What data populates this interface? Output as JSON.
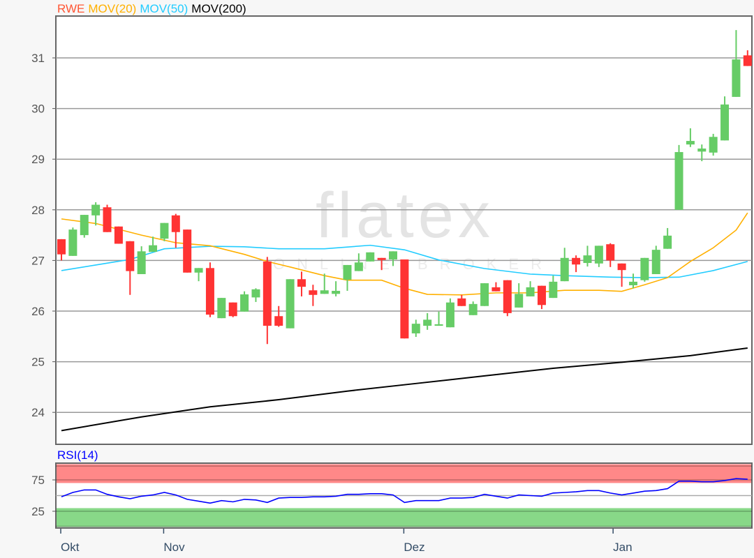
{
  "legend": {
    "symbol": "RWE",
    "ma20": "MOV(20)",
    "ma50": "MOV(50)",
    "ma200": "MOV(200)"
  },
  "watermark": {
    "brand": "flatex",
    "tagline": "ONLINE BROKER"
  },
  "rsi_title": "RSI(14)",
  "colors": {
    "up": "#66cc66",
    "down": "#ff3333",
    "symbol": "#ff5533",
    "ma20": "#ffb000",
    "ma50": "#22ccff",
    "ma200": "#000000",
    "rsi": "#0000ff",
    "rsi_overbought": "#ff8888",
    "rsi_oversold": "#88d888"
  },
  "chart_data": [
    {
      "type": "candlestick",
      "title": "",
      "ylim": [
        23.4,
        31.8
      ],
      "yticks": [
        24,
        25,
        26,
        27,
        28,
        29,
        30,
        31
      ],
      "grid": true,
      "xticks": [
        {
          "label": "Okt",
          "index": 0
        },
        {
          "label": "Nov",
          "index": 9
        },
        {
          "label": "Dez",
          "index": 30
        },
        {
          "label": "Jan",
          "index": 48.3
        }
      ],
      "ohlc": [
        [
          27.42,
          27.42,
          27.0,
          27.12
        ],
        [
          27.09,
          27.65,
          27.09,
          27.61
        ],
        [
          27.5,
          27.9,
          27.45,
          27.9
        ],
        [
          27.89,
          28.15,
          27.69,
          28.1
        ],
        [
          28.05,
          28.1,
          27.56,
          27.56
        ],
        [
          27.67,
          27.67,
          27.33,
          27.33
        ],
        [
          27.38,
          27.38,
          26.32,
          26.79
        ],
        [
          26.73,
          27.28,
          26.73,
          27.18
        ],
        [
          27.17,
          27.47,
          27.17,
          27.3
        ],
        [
          27.43,
          27.74,
          27.38,
          27.74
        ],
        [
          27.89,
          27.92,
          27.25,
          27.56
        ],
        [
          27.61,
          27.61,
          26.76,
          26.76
        ],
        [
          26.76,
          26.85,
          26.59,
          26.85
        ],
        [
          26.85,
          26.96,
          25.88,
          25.93
        ],
        [
          25.86,
          26.26,
          25.86,
          26.26
        ],
        [
          26.17,
          26.17,
          25.88,
          25.9
        ],
        [
          25.99,
          26.39,
          25.99,
          26.33
        ],
        [
          26.27,
          26.45,
          26.18,
          26.43
        ],
        [
          26.98,
          27.07,
          25.35,
          25.71
        ],
        [
          25.9,
          26.1,
          25.69,
          25.71
        ],
        [
          25.66,
          26.63,
          25.66,
          26.63
        ],
        [
          26.63,
          26.78,
          26.29,
          26.48
        ],
        [
          26.41,
          26.52,
          26.1,
          26.32
        ],
        [
          26.34,
          26.74,
          26.34,
          26.41
        ],
        [
          26.34,
          26.59,
          26.29,
          26.4
        ],
        [
          26.62,
          26.91,
          26.4,
          26.91
        ],
        [
          26.79,
          27.14,
          26.79,
          26.96
        ],
        [
          26.98,
          27.16,
          26.98,
          27.16
        ],
        [
          27.05,
          27.05,
          26.81,
          27.01
        ],
        [
          27.02,
          27.18,
          26.89,
          27.18
        ],
        [
          27.02,
          27.02,
          25.46,
          25.46
        ],
        [
          25.56,
          25.83,
          25.49,
          25.75
        ],
        [
          25.71,
          25.96,
          25.63,
          25.83
        ],
        [
          25.71,
          25.99,
          25.71,
          25.74
        ],
        [
          25.68,
          26.25,
          25.68,
          26.17
        ],
        [
          26.25,
          26.32,
          26.1,
          26.1
        ],
        [
          25.92,
          26.19,
          25.92,
          26.14
        ],
        [
          26.1,
          26.55,
          26.1,
          26.55
        ],
        [
          26.47,
          26.57,
          26.39,
          26.39
        ],
        [
          26.61,
          26.61,
          25.9,
          25.96
        ],
        [
          26.07,
          26.55,
          26.07,
          26.34
        ],
        [
          26.29,
          26.59,
          26.29,
          26.47
        ],
        [
          26.5,
          26.5,
          26.04,
          26.12
        ],
        [
          26.26,
          26.7,
          26.26,
          26.58
        ],
        [
          26.59,
          27.25,
          26.59,
          27.05
        ],
        [
          27.05,
          27.1,
          26.77,
          26.92
        ],
        [
          26.95,
          27.29,
          26.88,
          27.1
        ],
        [
          26.94,
          27.29,
          26.87,
          27.29
        ],
        [
          27.32,
          27.34,
          26.87,
          27.0
        ],
        [
          26.94,
          26.94,
          26.48,
          26.81
        ],
        [
          26.51,
          26.74,
          26.45,
          26.58
        ],
        [
          26.61,
          27.05,
          26.58,
          27.05
        ],
        [
          26.73,
          27.29,
          26.73,
          27.21
        ],
        [
          27.23,
          27.64,
          27.23,
          27.49
        ],
        [
          28.0,
          29.28,
          28.0,
          29.14
        ],
        [
          29.29,
          29.61,
          29.24,
          29.36
        ],
        [
          29.15,
          29.29,
          28.96,
          29.21
        ],
        [
          29.13,
          29.5,
          29.07,
          29.44
        ],
        [
          29.37,
          30.24,
          29.37,
          30.08
        ],
        [
          30.23,
          31.55,
          30.23,
          30.97
        ],
        [
          31.05,
          31.15,
          30.84,
          30.84
        ]
      ],
      "moving_averages": {
        "ma20": [
          [
            0,
            27.82
          ],
          [
            3,
            27.73
          ],
          [
            7,
            27.5
          ],
          [
            10,
            27.35
          ],
          [
            13,
            27.29
          ],
          [
            16,
            27.12
          ],
          [
            18,
            26.98
          ],
          [
            20,
            26.87
          ],
          [
            23,
            26.7
          ],
          [
            25,
            26.61
          ],
          [
            28,
            26.61
          ],
          [
            30,
            26.45
          ],
          [
            32,
            26.33
          ],
          [
            35,
            26.32
          ],
          [
            38,
            26.36
          ],
          [
            41,
            26.36
          ],
          [
            44,
            26.41
          ],
          [
            47,
            26.41
          ],
          [
            49,
            26.39
          ],
          [
            51,
            26.52
          ],
          [
            53,
            26.66
          ],
          [
            55,
            26.98
          ],
          [
            57,
            27.25
          ],
          [
            59,
            27.6
          ],
          [
            60,
            27.94
          ]
        ],
        "ma50": [
          [
            0,
            26.8
          ],
          [
            3,
            26.91
          ],
          [
            6,
            27.02
          ],
          [
            9,
            27.23
          ],
          [
            13,
            27.28
          ],
          [
            16,
            27.27
          ],
          [
            19,
            27.23
          ],
          [
            23,
            27.23
          ],
          [
            27,
            27.3
          ],
          [
            30,
            27.21
          ],
          [
            33,
            27.01
          ],
          [
            37,
            26.84
          ],
          [
            41,
            26.73
          ],
          [
            44,
            26.7
          ],
          [
            48,
            26.67
          ],
          [
            51,
            26.66
          ],
          [
            54,
            26.67
          ],
          [
            57,
            26.8
          ],
          [
            60,
            26.98
          ]
        ],
        "ma200": [
          [
            0,
            23.64
          ],
          [
            7,
            23.91
          ],
          [
            13,
            24.11
          ],
          [
            19,
            24.25
          ],
          [
            25,
            24.42
          ],
          [
            31,
            24.57
          ],
          [
            37,
            24.72
          ],
          [
            43,
            24.87
          ],
          [
            49,
            24.99
          ],
          [
            55,
            25.12
          ],
          [
            60,
            25.27
          ]
        ]
      }
    },
    {
      "type": "line",
      "title": "RSI(14)",
      "ylim": [
        0,
        100
      ],
      "yticks": [
        25,
        75
      ],
      "bands": {
        "overbought": [
          70,
          100
        ],
        "oversold": [
          0,
          30
        ]
      },
      "values": [
        48,
        55,
        59,
        59,
        52,
        48,
        45,
        49,
        51,
        55,
        51,
        44,
        41,
        38,
        42,
        40,
        44,
        43,
        39,
        46,
        47,
        47,
        48,
        48,
        49,
        52,
        52,
        53,
        53,
        51,
        39,
        42,
        42,
        42,
        46,
        46,
        47,
        52,
        49,
        46,
        51,
        50,
        49,
        54,
        55,
        56,
        58,
        58,
        54,
        51,
        54,
        57,
        58,
        61,
        73,
        73,
        72,
        72,
        74,
        77,
        76
      ]
    }
  ]
}
